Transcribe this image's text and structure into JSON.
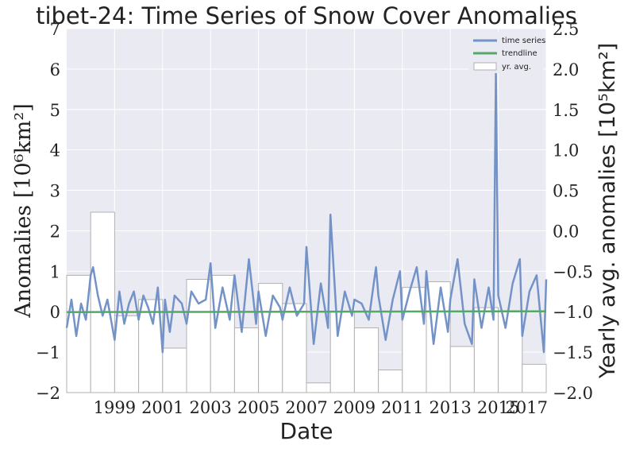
{
  "chart_data": {
    "type": "line",
    "title": "tibet-24: Time Series of Snow Cover Anomalies",
    "xlabel": "Date",
    "ylabel_left": "Anomalies [10⁶km²]",
    "ylabel_right": "Yearly avg. anomalies [10⁵km²]",
    "xlim": [
      1997.0,
      2017.0
    ],
    "ylim_left": [
      -2,
      7
    ],
    "ylim_right": [
      -2.0,
      2.5
    ],
    "x_ticks": [
      "1999",
      "2001",
      "2003",
      "2005",
      "2007",
      "2009",
      "2011",
      "2013",
      "2015",
      "2017"
    ],
    "y_ticks_left": [
      "−2",
      "−1",
      "0",
      "1",
      "2",
      "3",
      "4",
      "5",
      "6",
      "7"
    ],
    "y_ticks_right": [
      "−2.0",
      "−1.5",
      "−1.0",
      "−0.5",
      "0.0",
      "0.5",
      "1.0",
      "1.5",
      "2.0",
      "2.5"
    ],
    "grid": true,
    "legend_position": "top-right",
    "legend": [
      "time series",
      "trendline",
      "yr. avg."
    ],
    "colors": {
      "time_series": "#7393c8",
      "trendline": "#55a868",
      "yearly_avg": "#b0b0b0",
      "plot_background": "#eaeaf2",
      "grid": "#ffffff"
    },
    "series": [
      {
        "name": "time series",
        "x": [
          1997.0,
          1997.2,
          1997.4,
          1997.6,
          1997.8,
          1998.0,
          1998.1,
          1998.3,
          1998.5,
          1998.7,
          1999.0,
          1999.2,
          1999.4,
          1999.6,
          1999.8,
          2000.0,
          2000.2,
          2000.4,
          2000.6,
          2000.8,
          2001.0,
          2001.1,
          2001.3,
          2001.5,
          2001.8,
          2002.0,
          2002.2,
          2002.5,
          2002.8,
          2003.0,
          2003.2,
          2003.5,
          2003.8,
          2004.0,
          2004.3,
          2004.6,
          2004.9,
          2005.0,
          2005.3,
          2005.6,
          2005.9,
          2006.0,
          2006.3,
          2006.6,
          2006.9,
          2007.0,
          2007.3,
          2007.6,
          2007.9,
          2008.0,
          2008.3,
          2008.6,
          2008.9,
          2009.0,
          2009.3,
          2009.6,
          2009.9,
          2010.0,
          2010.3,
          2010.6,
          2010.9,
          2011.0,
          2011.3,
          2011.6,
          2011.9,
          2012.0,
          2012.3,
          2012.6,
          2012.9,
          2013.0,
          2013.3,
          2013.6,
          2013.9,
          2014.0,
          2014.3,
          2014.6,
          2014.8,
          2014.9,
          2015.0,
          2015.3,
          2015.6,
          2015.9,
          2016.0,
          2016.3,
          2016.6,
          2016.9,
          2017.0
        ],
        "values": [
          -0.4,
          0.3,
          -0.6,
          0.2,
          -0.2,
          0.9,
          1.1,
          0.4,
          -0.1,
          0.3,
          -0.7,
          0.5,
          -0.3,
          0.2,
          0.5,
          -0.2,
          0.4,
          0.1,
          -0.3,
          0.6,
          -1.0,
          0.3,
          -0.5,
          0.4,
          0.2,
          -0.3,
          0.5,
          0.2,
          0.3,
          1.2,
          -0.4,
          0.6,
          -0.2,
          0.9,
          -0.5,
          1.3,
          -0.3,
          0.5,
          -0.6,
          0.4,
          0.1,
          -0.2,
          0.6,
          -0.1,
          0.2,
          1.6,
          -0.8,
          0.7,
          -0.4,
          2.4,
          -0.6,
          0.5,
          -0.1,
          0.3,
          0.2,
          -0.2,
          1.1,
          0.4,
          -0.7,
          0.3,
          1.0,
          -0.2,
          0.5,
          1.1,
          -0.3,
          1.0,
          -0.8,
          0.6,
          -0.5,
          0.3,
          1.3,
          -0.3,
          -0.8,
          0.8,
          -0.4,
          0.6,
          -0.2,
          5.9,
          0.4,
          -0.4,
          0.7,
          1.3,
          -0.6,
          0.5,
          0.9,
          -1.0,
          0.8
        ]
      },
      {
        "name": "trendline",
        "x": [
          1997.0,
          2017.0
        ],
        "values": [
          -0.01,
          0.01
        ]
      },
      {
        "name": "yr. avg.",
        "axis": "right",
        "x": [
          1997,
          1998,
          1999,
          2000,
          2001,
          2002,
          2003,
          2004,
          2005,
          2006,
          2007,
          2008,
          2009,
          2010,
          2011,
          2012,
          2013,
          2014,
          2015,
          2016
        ],
        "values": [
          -0.55,
          0.23,
          -1.05,
          -0.85,
          -1.45,
          -0.6,
          -0.55,
          -1.2,
          -0.65,
          -0.9,
          -1.88,
          -1.0,
          -1.2,
          -1.72,
          -0.7,
          -0.63,
          -1.43,
          -0.95,
          -1.0,
          -1.65
        ]
      }
    ]
  }
}
